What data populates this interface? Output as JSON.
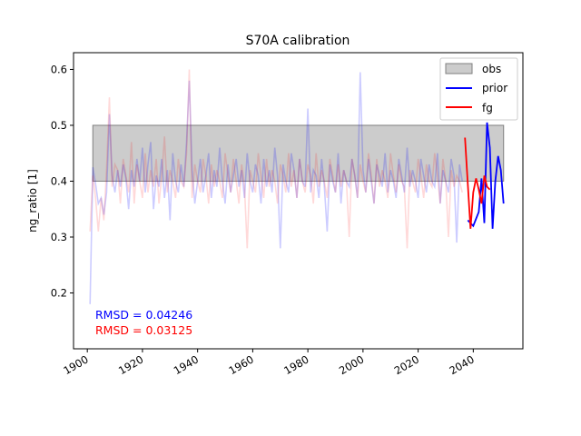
{
  "chart_data": {
    "type": "line",
    "title": "S70A calibration",
    "xlabel": "",
    "ylabel": "ng_ratio [1]",
    "xlim": [
      1895,
      2058
    ],
    "ylim": [
      0.1,
      0.63
    ],
    "x_ticks": [
      1900,
      1920,
      1940,
      1960,
      1980,
      2000,
      2020,
      2040
    ],
    "y_ticks": [
      0.2,
      0.3,
      0.4,
      0.5,
      0.6
    ],
    "grid": false,
    "legend_placement": "top-right",
    "obs_band": {
      "name": "obs",
      "x_start": 1902,
      "x_end": 2051,
      "y_low": 0.4,
      "y_high": 0.5,
      "color": "#cccccc"
    },
    "series": [
      {
        "name": "prior",
        "color": "#0000ff",
        "x": [
          2038,
          2040,
          2042,
          2043,
          2044,
          2045,
          2046,
          2047,
          2048,
          2049,
          2050,
          2051
        ],
        "values": [
          0.33,
          0.32,
          0.345,
          0.405,
          0.325,
          0.505,
          0.46,
          0.315,
          0.4,
          0.445,
          0.42,
          0.36
        ]
      },
      {
        "name": "fg",
        "color": "#ff0000",
        "x": [
          2037,
          2038,
          2039,
          2040,
          2041,
          2042,
          2043,
          2044,
          2045,
          2046
        ],
        "values": [
          0.478,
          0.395,
          0.315,
          0.38,
          0.405,
          0.385,
          0.36,
          0.41,
          0.39,
          0.385
        ]
      }
    ],
    "faded_series": [
      {
        "color": "#0000ff",
        "opacity": 0.2,
        "x_start": 1901,
        "x_end": 2036,
        "values": [
          0.18,
          0.425,
          0.395,
          0.36,
          0.37,
          0.34,
          0.38,
          0.52,
          0.41,
          0.38,
          0.42,
          0.39,
          0.43,
          0.405,
          0.35,
          0.42,
          0.39,
          0.44,
          0.4,
          0.46,
          0.38,
          0.43,
          0.47,
          0.35,
          0.41,
          0.39,
          0.44,
          0.37,
          0.42,
          0.33,
          0.45,
          0.4,
          0.38,
          0.43,
          0.39,
          0.47,
          0.58,
          0.42,
          0.36,
          0.4,
          0.44,
          0.38,
          0.41,
          0.45,
          0.37,
          0.42,
          0.39,
          0.46,
          0.4,
          0.36,
          0.43,
          0.38,
          0.41,
          0.44,
          0.39,
          0.42,
          0.37,
          0.45,
          0.4,
          0.38,
          0.43,
          0.41,
          0.36,
          0.44,
          0.39,
          0.42,
          0.38,
          0.46,
          0.41,
          0.28,
          0.43,
          0.4,
          0.38,
          0.45,
          0.42,
          0.37,
          0.44,
          0.4,
          0.39,
          0.53,
          0.38,
          0.42,
          0.41,
          0.37,
          0.44,
          0.39,
          0.31,
          0.43,
          0.4,
          0.38,
          0.45,
          0.36,
          0.42,
          0.4,
          0.39,
          0.44,
          0.41,
          0.37,
          0.595,
          0.42,
          0.38,
          0.44,
          0.4,
          0.36,
          0.43,
          0.41,
          0.39,
          0.45,
          0.38,
          0.42,
          0.4,
          0.37,
          0.44,
          0.41,
          0.38,
          0.46,
          0.39,
          0.42,
          0.4,
          0.37,
          0.44,
          0.41,
          0.38,
          0.43,
          0.4,
          0.39,
          0.45,
          0.36,
          0.42,
          0.4,
          0.38,
          0.44,
          0.41,
          0.29,
          0.43,
          0.4
        ]
      },
      {
        "color": "#ff0000",
        "opacity": 0.15,
        "x_start": 1901,
        "x_end": 2036,
        "values": [
          0.31,
          0.41,
          0.37,
          0.31,
          0.37,
          0.33,
          0.42,
          0.55,
          0.39,
          0.43,
          0.42,
          0.36,
          0.44,
          0.41,
          0.38,
          0.47,
          0.36,
          0.43,
          0.4,
          0.37,
          0.45,
          0.38,
          0.42,
          0.39,
          0.44,
          0.36,
          0.41,
          0.48,
          0.38,
          0.42,
          0.4,
          0.37,
          0.44,
          0.4,
          0.39,
          0.45,
          0.6,
          0.37,
          0.43,
          0.4,
          0.38,
          0.44,
          0.41,
          0.36,
          0.43,
          0.39,
          0.42,
          0.4,
          0.37,
          0.45,
          0.41,
          0.38,
          0.44,
          0.4,
          0.36,
          0.43,
          0.39,
          0.28,
          0.42,
          0.4,
          0.38,
          0.45,
          0.41,
          0.37,
          0.44,
          0.39,
          0.42,
          0.4,
          0.36,
          0.43,
          0.41,
          0.38,
          0.45,
          0.39,
          0.42,
          0.37,
          0.44,
          0.4,
          0.38,
          0.43,
          0.41,
          0.36,
          0.45,
          0.39,
          0.42,
          0.4,
          0.37,
          0.44,
          0.41,
          0.38,
          0.43,
          0.39,
          0.42,
          0.4,
          0.3,
          0.44,
          0.41,
          0.37,
          0.43,
          0.4,
          0.38,
          0.45,
          0.41,
          0.36,
          0.44,
          0.39,
          0.42,
          0.4,
          0.37,
          0.45,
          0.41,
          0.38,
          0.43,
          0.4,
          0.39,
          0.28,
          0.42,
          0.4,
          0.38,
          0.44,
          0.41,
          0.37,
          0.43,
          0.4,
          0.39,
          0.45,
          0.41,
          0.36,
          0.44,
          0.4,
          0.3,
          0.42,
          0.39,
          0.41,
          0.4,
          0.38
        ]
      }
    ],
    "annotations": [
      {
        "text": "RMSD = 0.04246",
        "color": "#0000ff"
      },
      {
        "text": "RMSD = 0.03125",
        "color": "#ff0000"
      }
    ]
  }
}
